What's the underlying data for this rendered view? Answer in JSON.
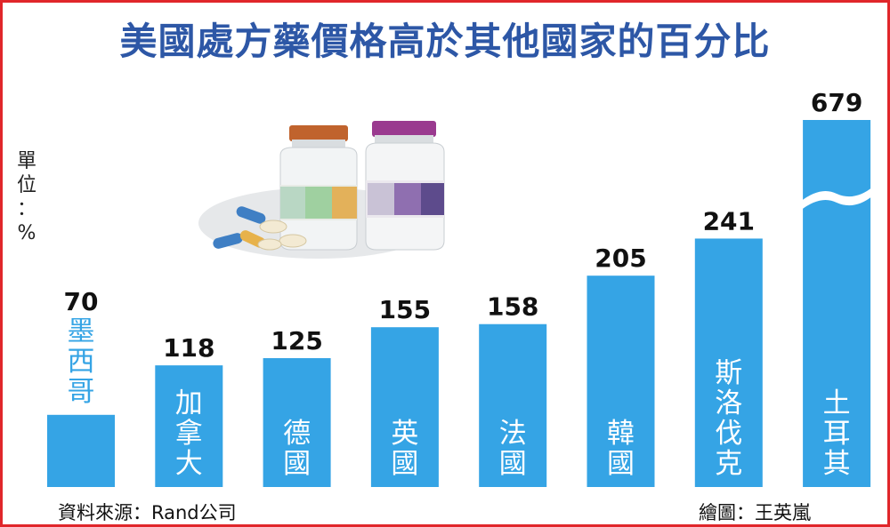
{
  "title": "美國處方藥價格高於其他國家的百分比",
  "unit_label": "單位：%",
  "source": "資料來源：Rand公司",
  "credit": "繪圖：王英嵐",
  "colors": {
    "bar": "#35a4e5",
    "title": "#2d57a6",
    "border": "#e0262b",
    "label_inside": "#ffffff",
    "label_outside": "#35a4e5"
  },
  "chart_data": {
    "type": "bar",
    "title": "美國處方藥價格高於其他國家的百分比",
    "ylabel": "單位：%",
    "categories": [
      "墨西哥",
      "加拿大",
      "德國",
      "英國",
      "法國",
      "韓國",
      "斯洛伐克",
      "土耳其"
    ],
    "values": [
      70,
      118,
      125,
      155,
      158,
      205,
      241,
      679
    ],
    "axis_break_on": "土耳其",
    "grid": false,
    "legend": "none"
  }
}
